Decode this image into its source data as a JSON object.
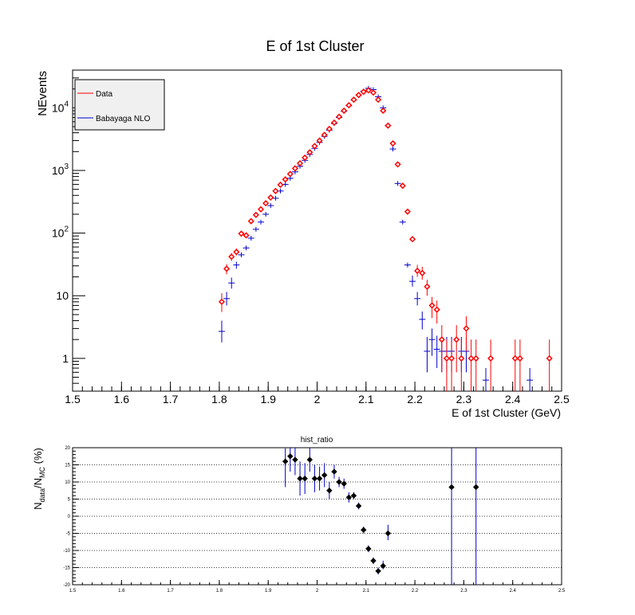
{
  "chart_data": [
    {
      "type": "scatter",
      "title": "E of 1st Cluster",
      "xlabel": "E of 1st Cluster (GeV)",
      "ylabel": "NEvents",
      "xlim": [
        1.5,
        2.5
      ],
      "yscale": "log",
      "ylim": [
        0.3,
        40000
      ],
      "x_ticks": [
        "1.5",
        "1.6",
        "1.7",
        "1.8",
        "1.9",
        "2",
        "2.1",
        "2.2",
        "2.3",
        "2.4",
        "2.5"
      ],
      "y_ticks": [
        {
          "value": 1,
          "base": "1",
          "exp": ""
        },
        {
          "value": 10,
          "base": "10",
          "exp": ""
        },
        {
          "value": 100,
          "base": "10",
          "exp": "2"
        },
        {
          "value": 1000,
          "base": "10",
          "exp": "3"
        },
        {
          "value": 10000,
          "base": "10",
          "exp": "4"
        }
      ],
      "grid": false,
      "legend_position": "top-left",
      "series": [
        {
          "name": "Data",
          "color": "#ff0000",
          "marker": "open-diamond",
          "points": [
            {
              "x": 1.805,
              "y": 8,
              "lo": 5.5,
              "hi": 11
            },
            {
              "x": 1.815,
              "y": 27,
              "lo": 22,
              "hi": 32
            },
            {
              "x": 1.825,
              "y": 42,
              "lo": 36,
              "hi": 48
            },
            {
              "x": 1.835,
              "y": 50,
              "lo": 44,
              "hi": 57
            },
            {
              "x": 1.845,
              "y": 98
            },
            {
              "x": 1.855,
              "y": 92
            },
            {
              "x": 1.865,
              "y": 155
            },
            {
              "x": 1.875,
              "y": 195
            },
            {
              "x": 1.885,
              "y": 240
            },
            {
              "x": 1.895,
              "y": 300
            },
            {
              "x": 1.905,
              "y": 370
            },
            {
              "x": 1.915,
              "y": 470
            },
            {
              "x": 1.925,
              "y": 590
            },
            {
              "x": 1.935,
              "y": 720
            },
            {
              "x": 1.945,
              "y": 880
            },
            {
              "x": 1.955,
              "y": 1080
            },
            {
              "x": 1.965,
              "y": 1300
            },
            {
              "x": 1.975,
              "y": 1600
            },
            {
              "x": 1.985,
              "y": 1950
            },
            {
              "x": 1.995,
              "y": 2450
            },
            {
              "x": 2.005,
              "y": 3000
            },
            {
              "x": 2.015,
              "y": 3700
            },
            {
              "x": 2.025,
              "y": 4600
            },
            {
              "x": 2.035,
              "y": 5800
            },
            {
              "x": 2.045,
              "y": 7200
            },
            {
              "x": 2.055,
              "y": 9000
            },
            {
              "x": 2.065,
              "y": 11000
            },
            {
              "x": 2.075,
              "y": 13500
            },
            {
              "x": 2.085,
              "y": 16000
            },
            {
              "x": 2.095,
              "y": 18000
            },
            {
              "x": 2.105,
              "y": 19000
            },
            {
              "x": 2.115,
              "y": 17500
            },
            {
              "x": 2.125,
              "y": 13500
            },
            {
              "x": 2.135,
              "y": 9000
            },
            {
              "x": 2.145,
              "y": 5200
            },
            {
              "x": 2.155,
              "y": 2700
            },
            {
              "x": 2.165,
              "y": 1250
            },
            {
              "x": 2.175,
              "y": 570
            },
            {
              "x": 2.185,
              "y": 220
            },
            {
              "x": 2.195,
              "y": 80
            },
            {
              "x": 2.205,
              "y": 25,
              "lo": 20,
              "hi": 31
            },
            {
              "x": 2.215,
              "y": 23,
              "lo": 18,
              "hi": 29
            },
            {
              "x": 2.225,
              "y": 14,
              "lo": 10,
              "hi": 18
            },
            {
              "x": 2.235,
              "y": 7,
              "lo": 4.4,
              "hi": 9.6
            },
            {
              "x": 2.245,
              "y": 6,
              "lo": 3.6,
              "hi": 8.4
            },
            {
              "x": 2.255,
              "y": 2,
              "lo": 0.6,
              "hi": 3.4
            },
            {
              "x": 2.265,
              "y": 1,
              "lo": 0.3,
              "hi": 2
            },
            {
              "x": 2.275,
              "y": 1,
              "lo": 0.3,
              "hi": 2
            },
            {
              "x": 2.285,
              "y": 2,
              "lo": 0.6,
              "hi": 3.4
            },
            {
              "x": 2.295,
              "y": 1,
              "lo": 0.3,
              "hi": 2
            },
            {
              "x": 2.305,
              "y": 3,
              "lo": 1.3,
              "hi": 4.7
            },
            {
              "x": 2.315,
              "y": 1,
              "lo": 0.3,
              "hi": 2
            },
            {
              "x": 2.325,
              "y": 1,
              "lo": 0.3,
              "hi": 2
            },
            {
              "x": 2.355,
              "y": 1,
              "lo": 0.3,
              "hi": 2
            },
            {
              "x": 2.405,
              "y": 1,
              "lo": 0.3,
              "hi": 2
            },
            {
              "x": 2.415,
              "y": 1,
              "lo": 0.3,
              "hi": 2
            },
            {
              "x": 2.475,
              "y": 1,
              "lo": 0.3,
              "hi": 2
            }
          ]
        },
        {
          "name": "Babayaga NLO",
          "color": "#0000cc",
          "marker": "cross",
          "points": [
            {
              "x": 1.805,
              "y": 2.7,
              "lo": 1.8,
              "hi": 4
            },
            {
              "x": 1.815,
              "y": 9,
              "lo": 7,
              "hi": 11.5
            },
            {
              "x": 1.825,
              "y": 16,
              "lo": 13,
              "hi": 19.5
            },
            {
              "x": 1.835,
              "y": 31,
              "lo": 27,
              "hi": 35
            },
            {
              "x": 1.845,
              "y": 45
            },
            {
              "x": 1.855,
              "y": 58
            },
            {
              "x": 1.865,
              "y": 83
            },
            {
              "x": 1.875,
              "y": 115
            },
            {
              "x": 1.885,
              "y": 150
            },
            {
              "x": 1.895,
              "y": 200
            },
            {
              "x": 1.905,
              "y": 275
            },
            {
              "x": 1.915,
              "y": 360
            },
            {
              "x": 1.925,
              "y": 470
            },
            {
              "x": 1.935,
              "y": 600
            },
            {
              "x": 1.945,
              "y": 750
            },
            {
              "x": 1.955,
              "y": 950
            },
            {
              "x": 1.965,
              "y": 1170
            },
            {
              "x": 1.975,
              "y": 1450
            },
            {
              "x": 1.985,
              "y": 1800
            },
            {
              "x": 1.995,
              "y": 2250
            },
            {
              "x": 2.005,
              "y": 2800
            },
            {
              "x": 2.015,
              "y": 3500
            },
            {
              "x": 2.025,
              "y": 4400
            },
            {
              "x": 2.035,
              "y": 5600
            },
            {
              "x": 2.045,
              "y": 7000
            },
            {
              "x": 2.055,
              "y": 8800
            },
            {
              "x": 2.065,
              "y": 10800
            },
            {
              "x": 2.075,
              "y": 13300
            },
            {
              "x": 2.085,
              "y": 16000
            },
            {
              "x": 2.095,
              "y": 18500
            },
            {
              "x": 2.105,
              "y": 20500
            },
            {
              "x": 2.115,
              "y": 19500
            },
            {
              "x": 2.125,
              "y": 15000
            },
            {
              "x": 2.135,
              "y": 10000
            },
            {
              "x": 2.145,
              "y": 5200
            },
            {
              "x": 2.155,
              "y": 2200
            },
            {
              "x": 2.165,
              "y": 620
            },
            {
              "x": 2.175,
              "y": 150
            },
            {
              "x": 2.185,
              "y": 31
            },
            {
              "x": 2.195,
              "y": 17,
              "lo": 14,
              "hi": 21
            },
            {
              "x": 2.205,
              "y": 9,
              "lo": 7,
              "hi": 11.5
            },
            {
              "x": 2.215,
              "y": 4.2,
              "lo": 2.9,
              "hi": 5.6
            },
            {
              "x": 2.225,
              "y": 1.3,
              "lo": 0.6,
              "hi": 2.2
            },
            {
              "x": 2.235,
              "y": 2,
              "lo": 1.1,
              "hi": 3
            },
            {
              "x": 2.245,
              "y": 1.4,
              "lo": 0.7,
              "hi": 2.3
            },
            {
              "x": 2.255,
              "y": 1.3,
              "lo": 0.6,
              "hi": 2.2
            },
            {
              "x": 2.265,
              "y": 1.3,
              "lo": 0.6,
              "hi": 2.2
            },
            {
              "x": 2.275,
              "y": 1.3,
              "lo": 0.6,
              "hi": 2.2
            },
            {
              "x": 2.295,
              "y": 1.3,
              "lo": 0.6,
              "hi": 2.2
            },
            {
              "x": 2.305,
              "y": 1.3,
              "lo": 0.6,
              "hi": 2.2
            },
            {
              "x": 2.345,
              "y": 0.45,
              "lo": 0.3,
              "hi": 0.7
            },
            {
              "x": 2.435,
              "y": 0.45,
              "lo": 0.3,
              "hi": 0.7
            }
          ]
        }
      ]
    },
    {
      "type": "scatter",
      "title": "hist_ratio",
      "xlabel": "",
      "ylabel": "N_data/N_MC (%)",
      "ylabel_parts": {
        "n": "N",
        "sub1": "data",
        "slash": "/N",
        "sub2": "MC",
        "unit": " (%)"
      },
      "xlim": [
        1.5,
        2.5
      ],
      "ylim": [
        -20,
        20
      ],
      "x_ticks": [
        "1.5",
        "1.6",
        "1.7",
        "1.8",
        "1.9",
        "2",
        "2.1",
        "2.2",
        "2.3",
        "2.4",
        "2.5"
      ],
      "y_ticks": [
        "-20",
        "-15",
        "-10",
        "-5",
        "0",
        "5",
        "10",
        "15",
        "20"
      ],
      "grid": "horizontal-dotted",
      "series": [
        {
          "color": "#000000",
          "marker": "filled-diamond",
          "points": [
            {
              "x": 1.935,
              "y": 16,
              "lo": 8.5,
              "hi": 19.8
            },
            {
              "x": 1.945,
              "y": 17.5,
              "lo": 13,
              "hi": 20
            },
            {
              "x": 1.955,
              "y": 16.5,
              "lo": 12,
              "hi": 20
            },
            {
              "x": 1.965,
              "y": 11,
              "lo": 6,
              "hi": 16
            },
            {
              "x": 1.975,
              "y": 11,
              "lo": 6.5,
              "hi": 15.5
            },
            {
              "x": 1.985,
              "y": 16.5,
              "lo": 13,
              "hi": 20
            },
            {
              "x": 1.995,
              "y": 11,
              "lo": 7,
              "hi": 15
            },
            {
              "x": 2.005,
              "y": 11,
              "lo": 7.5,
              "hi": 14.5
            },
            {
              "x": 2.015,
              "y": 12,
              "lo": 8.5,
              "hi": 15.5
            },
            {
              "x": 2.025,
              "y": 7.5,
              "lo": 5,
              "hi": 10
            },
            {
              "x": 2.035,
              "y": 13,
              "lo": 11,
              "hi": 15
            },
            {
              "x": 2.045,
              "y": 10,
              "lo": 8.5,
              "hi": 11.5
            },
            {
              "x": 2.055,
              "y": 9.5,
              "lo": 8,
              "hi": 11
            },
            {
              "x": 2.065,
              "y": 5.5,
              "lo": 4,
              "hi": 7
            },
            {
              "x": 2.075,
              "y": 6,
              "lo": 5,
              "hi": 7
            },
            {
              "x": 2.085,
              "y": 3,
              "lo": 2,
              "hi": 4
            },
            {
              "x": 2.095,
              "y": -4,
              "lo": -5,
              "hi": -3
            },
            {
              "x": 2.105,
              "y": -9.5,
              "lo": -10.5,
              "hi": -8.5
            },
            {
              "x": 2.115,
              "y": -13,
              "lo": -14,
              "hi": -12
            },
            {
              "x": 2.125,
              "y": -16,
              "lo": -17,
              "hi": -15
            },
            {
              "x": 2.135,
              "y": -14.5,
              "lo": -15.5,
              "hi": -13
            },
            {
              "x": 2.145,
              "y": -5,
              "lo": -7,
              "hi": -2.5
            },
            {
              "x": 2.275,
              "y": 8.5,
              "lo": -20,
              "hi": 20,
              "bar_color": "#0000cc"
            },
            {
              "x": 2.325,
              "y": 8.5,
              "lo": -20,
              "hi": 20,
              "bar_color": "#0000cc"
            }
          ]
        }
      ]
    }
  ]
}
